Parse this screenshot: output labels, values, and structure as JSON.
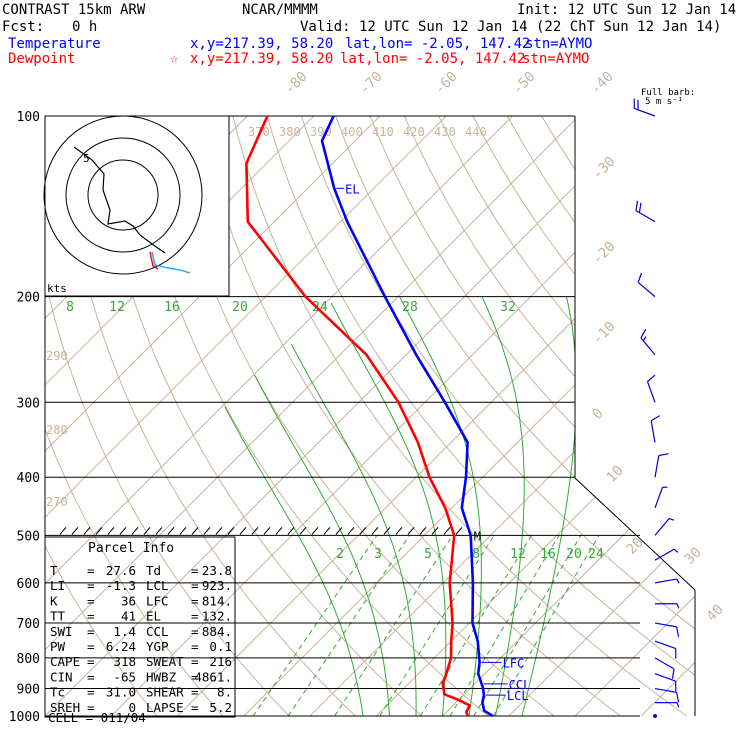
{
  "header": {
    "model": "CONTRAST 15km ARW",
    "org": "NCAR/MMMM",
    "init": "Init: 12 UTC Sun 12 Jan 14",
    "fcst_label": "Fcst:",
    "fcst_value": "0 h",
    "valid": "Valid: 12 UTC Sun 12 Jan 14 (22 ChT Sun 12 Jan 14)",
    "temperature_label": "Temperature",
    "dewpoint_label": "Dewpoint",
    "temp_xy": "x,y=217.39, 58.20",
    "temp_latlon": "lat,lon= -2.05, 147.42",
    "temp_stn": "stn=AYMO",
    "dew_star": "☆",
    "dew_xy": "x,y=217.39, 58.20",
    "dew_latlon": "lat,lon= -2.05, 147.42",
    "dew_stn": "stn=AYMO"
  },
  "barb_legend": {
    "line1": "Full barb:",
    "line2": "5 m s⁻¹"
  },
  "parcel": {
    "title": "Parcel Info",
    "rows": [
      {
        "l1": "T",
        "v1": "27.6",
        "l2": "Td",
        "v2": "23.8"
      },
      {
        "l1": "LI",
        "v1": "-1.3",
        "l2": "LCL",
        "v2": "923."
      },
      {
        "l1": "K",
        "v1": "36",
        "l2": "LFC",
        "v2": "814."
      },
      {
        "l1": "TT",
        "v1": "41",
        "l2": "EL",
        "v2": "132."
      },
      {
        "l1": "SWI",
        "v1": "1.4",
        "l2": "CCL",
        "v2": "884."
      },
      {
        "l1": "PW",
        "v1": "6.24",
        "l2": "YGP",
        "v2": "0.1"
      },
      {
        "l1": "CAPE",
        "v1": "318",
        "l2": "SWEAT",
        "v2": "216"
      },
      {
        "l1": "CIN",
        "v1": "-65",
        "l2": "HWBZ",
        "v2": "4861."
      },
      {
        "l1": "Tc",
        "v1": "31.0",
        "l2": "SHEAR",
        "v2": "8."
      },
      {
        "l1": "SREH",
        "v1": "0",
        "l2": "LAPSE",
        "v2": "5.2"
      }
    ],
    "cell": "CELL = 011/04"
  },
  "hodograph": {
    "unit": "kts",
    "ring_label": "5"
  },
  "chart_data": {
    "type": "line",
    "title": "",
    "xlabel": "",
    "ylabel": "",
    "y_scale": "log-pressure",
    "ylim": [
      1000,
      100
    ],
    "x_range_at_1000hPa": [
      -40,
      40
    ],
    "pressure_ticks": [
      "100",
      "200",
      "300",
      "400",
      "500",
      "600",
      "700",
      "800",
      "900",
      "1000"
    ],
    "isotherms_top": [
      "-80",
      "-70",
      "-60",
      "-50",
      "-40"
    ],
    "isotherms_right": [
      "-30",
      "-20",
      "-10",
      "0",
      "10",
      "20",
      "30",
      "40"
    ],
    "theta_labels_top": [
      "370",
      "380",
      "390",
      "400",
      "410",
      "420",
      "430",
      "440"
    ],
    "theta_labels_left": [
      "290",
      "280",
      "270"
    ],
    "mixing_ratio_upper": [
      "8",
      "12",
      "16",
      "20",
      "24",
      "28",
      "32"
    ],
    "mixing_ratio_lower": [
      "2",
      "3",
      "5",
      "8",
      "12",
      "16",
      "20",
      "24"
    ],
    "annotations": [
      "EL",
      "LFC",
      "CCL",
      "LCL",
      "M"
    ],
    "series": [
      {
        "name": "Temperature",
        "color": "#0000ff",
        "p": [
          1000,
          980,
          950,
          923,
          900,
          850,
          814,
          750,
          700,
          600,
          500,
          450,
          400,
          350,
          300,
          250,
          200,
          150,
          132,
          110,
          100
        ],
        "t": [
          27.6,
          25.5,
          24.0,
          23.1,
          22.0,
          19.0,
          17.5,
          14.0,
          10.5,
          4.5,
          -3.0,
          -8.5,
          -12.5,
          -17.5,
          -27.0,
          -38.5,
          -52.0,
          -69.0,
          -76.0,
          -85.0,
          -87.0
        ]
      },
      {
        "name": "Dewpoint",
        "color": "#ff0000",
        "p": [
          1000,
          985,
          960,
          940,
          920,
          900,
          880,
          860,
          800,
          750,
          700,
          600,
          500,
          450,
          400,
          350,
          300,
          250,
          200,
          150,
          120,
          100
        ],
        "td": [
          23.8,
          23.0,
          22.5,
          20.0,
          17.0,
          16.0,
          15.0,
          14.5,
          12.5,
          10.0,
          7.5,
          1.0,
          -5.5,
          -11.0,
          -18.0,
          -25.0,
          -34.0,
          -46.0,
          -64.0,
          -84.0,
          -93.0,
          -97.0
        ]
      }
    ],
    "wind_barbs": [
      {
        "p": 1000,
        "speed_kt": 0,
        "dir_deg": 0
      },
      {
        "p": 950,
        "speed_kt": 5,
        "dir_deg": 90
      },
      {
        "p": 900,
        "speed_kt": 10,
        "dir_deg": 100
      },
      {
        "p": 850,
        "speed_kt": 10,
        "dir_deg": 110
      },
      {
        "p": 800,
        "speed_kt": 10,
        "dir_deg": 120
      },
      {
        "p": 750,
        "speed_kt": 10,
        "dir_deg": 110
      },
      {
        "p": 700,
        "speed_kt": 10,
        "dir_deg": 100
      },
      {
        "p": 650,
        "speed_kt": 5,
        "dir_deg": 90
      },
      {
        "p": 600,
        "speed_kt": 5,
        "dir_deg": 80
      },
      {
        "p": 550,
        "speed_kt": 5,
        "dir_deg": 60
      },
      {
        "p": 500,
        "speed_kt": 5,
        "dir_deg": 40
      },
      {
        "p": 450,
        "speed_kt": 5,
        "dir_deg": 20
      },
      {
        "p": 400,
        "speed_kt": 10,
        "dir_deg": 10
      },
      {
        "p": 350,
        "speed_kt": 10,
        "dir_deg": 350
      },
      {
        "p": 300,
        "speed_kt": 10,
        "dir_deg": 340
      },
      {
        "p": 250,
        "speed_kt": 15,
        "dir_deg": 320
      },
      {
        "p": 200,
        "speed_kt": 10,
        "dir_deg": 310
      },
      {
        "p": 150,
        "speed_kt": 20,
        "dir_deg": 300
      },
      {
        "p": 100,
        "speed_kt": 20,
        "dir_deg": 290
      }
    ]
  }
}
